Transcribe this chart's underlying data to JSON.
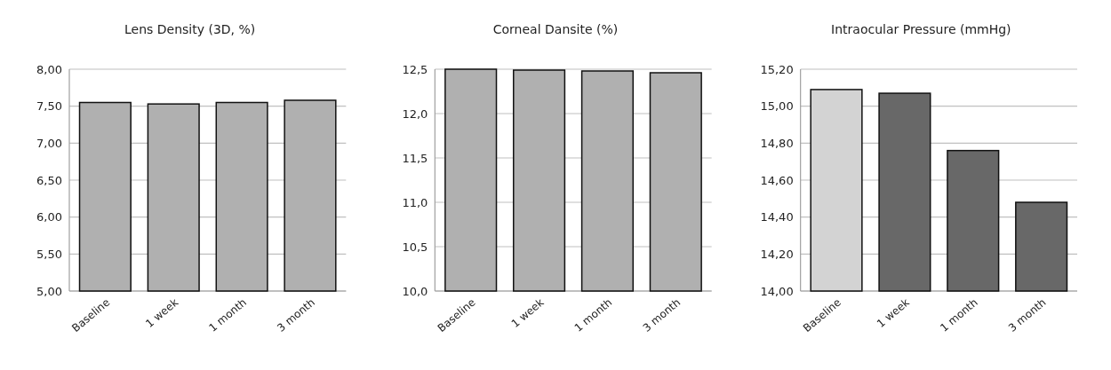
{
  "chart_data": [
    {
      "type": "bar",
      "title": "Lens Density (3D, %)",
      "categories": [
        "Baseline",
        "1 week",
        "1 month",
        "3 month"
      ],
      "values": [
        7.55,
        7.53,
        7.55,
        7.58
      ],
      "colors": [
        "#b0b0b0",
        "#b0b0b0",
        "#b0b0b0",
        "#b0b0b0"
      ],
      "ylim": [
        5,
        8
      ],
      "yticks": [
        {
          "value": 5,
          "label": "5,00"
        },
        {
          "value": 5.5,
          "label": "5,50"
        },
        {
          "value": 6,
          "label": "6,00"
        },
        {
          "value": 6.5,
          "label": "6,50"
        },
        {
          "value": 7,
          "label": "7,00"
        },
        {
          "value": 7.5,
          "label": "7,50"
        },
        {
          "value": 8,
          "label": "8,00"
        }
      ],
      "grid": "y"
    },
    {
      "type": "bar",
      "title": "Corneal Dansite (%)",
      "categories": [
        "Baseline",
        "1 week",
        "1 month",
        "3 month"
      ],
      "values": [
        12.5,
        12.49,
        12.48,
        12.46
      ],
      "colors": [
        "#b0b0b0",
        "#b0b0b0",
        "#b0b0b0",
        "#b0b0b0"
      ],
      "ylim": [
        10,
        12.5
      ],
      "yticks": [
        {
          "value": 10,
          "label": "10,0"
        },
        {
          "value": 10.5,
          "label": "10,5"
        },
        {
          "value": 11,
          "label": "11,0"
        },
        {
          "value": 11.5,
          "label": "11,5"
        },
        {
          "value": 12,
          "label": "12,0"
        },
        {
          "value": 12.5,
          "label": "12,5"
        }
      ],
      "grid": "y"
    },
    {
      "type": "bar",
      "title": "Intraocular Pressure (mmHg)",
      "categories": [
        "Baseline",
        "1 week",
        "1 month",
        "3 month"
      ],
      "values": [
        15.09,
        15.07,
        14.76,
        14.48
      ],
      "colors": [
        "#d3d3d3",
        "#686868",
        "#686868",
        "#686868"
      ],
      "ylim": [
        14,
        15.2
      ],
      "yticks": [
        {
          "value": 14,
          "label": "14,00"
        },
        {
          "value": 14.2,
          "label": "14,20"
        },
        {
          "value": 14.4,
          "label": "14,40"
        },
        {
          "value": 14.6,
          "label": "14,60"
        },
        {
          "value": 14.8,
          "label": "14,80"
        },
        {
          "value": 15,
          "label": "15,00"
        },
        {
          "value": 15.2,
          "label": "15,20"
        }
      ],
      "grid": "y"
    }
  ]
}
